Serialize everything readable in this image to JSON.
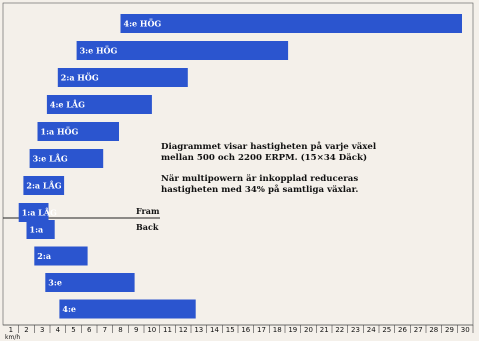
{
  "chart_data": {
    "type": "bar",
    "orientation": "horizontal",
    "forward_label": "Fram",
    "reverse_label": "Back",
    "xlim": [
      1,
      30
    ],
    "x_ticks": [
      "1",
      "2",
      "3",
      "4",
      "5",
      "6",
      "7",
      "8",
      "9",
      "10",
      "11",
      "12",
      "13",
      "14",
      "15",
      "16",
      "17",
      "18",
      "19",
      "20",
      "21",
      "22",
      "23",
      "24",
      "25",
      "26",
      "27",
      "28",
      "29",
      "30"
    ],
    "x_unit": "km/h",
    "forward": [
      {
        "label": "4:e HÖG",
        "start": 8,
        "end": 29.8
      },
      {
        "label": "3:e HÖG",
        "start": 5.2,
        "end": 18.7
      },
      {
        "label": "2:a HÖG",
        "start": 4,
        "end": 12.3
      },
      {
        "label": "4:e LÅG",
        "start": 3.3,
        "end": 10
      },
      {
        "label": "1:a HÖG",
        "start": 2.7,
        "end": 7.9
      },
      {
        "label": "3:e LÅG",
        "start": 2.2,
        "end": 6.9
      },
      {
        "label": "2:a LÅG",
        "start": 1.8,
        "end": 4.4
      },
      {
        "label": "1:a LÅG",
        "start": 1.5,
        "end": 3.4
      }
    ],
    "reverse": [
      {
        "label": "1:a",
        "start": 2,
        "end": 3.8
      },
      {
        "label": "2:a",
        "start": 2.5,
        "end": 5.9
      },
      {
        "label": "3:e",
        "start": 3.2,
        "end": 8.9
      },
      {
        "label": "4:e",
        "start": 4.1,
        "end": 12.8
      }
    ]
  },
  "note": {
    "line1": "Diagrammet visar hastigheten på varje växel",
    "line2": "mellan 500 och 2200 ERPM. (15×34 Däck)",
    "line3": "När multipowern är inkopplad reduceras",
    "line4": "hastigheten med 34% på samtliga växlar."
  }
}
